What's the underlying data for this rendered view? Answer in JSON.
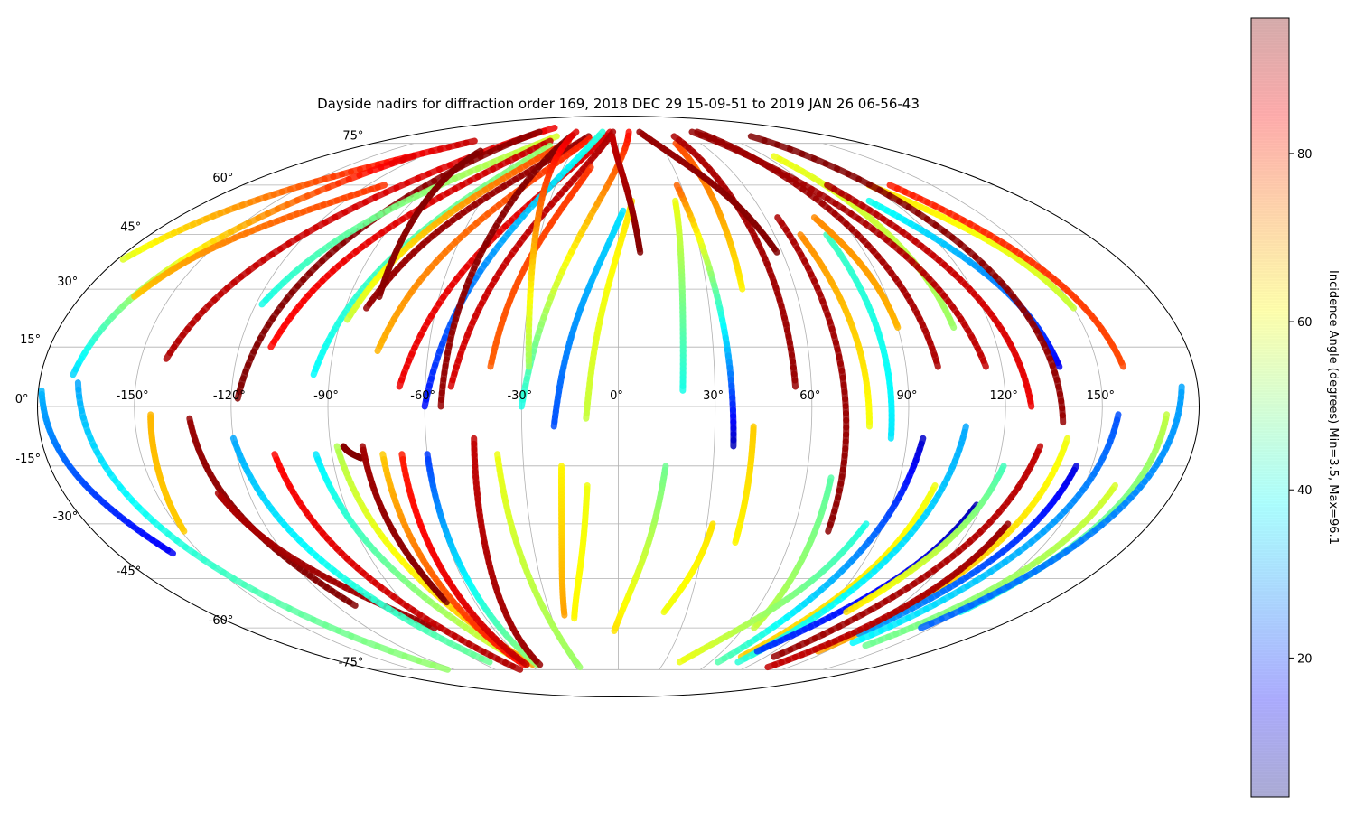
{
  "chart_data": {
    "type": "scatter",
    "projection": "mollweide",
    "title": "Dayside nadirs for diffraction order 169, 2018 DEC 29 15-09-51 to 2019 JAN 26 06-56-43",
    "x_ticks": [
      "-150°",
      "-120°",
      "-90°",
      "-60°",
      "-30°",
      "0°",
      "30°",
      "60°",
      "90°",
      "120°",
      "150°"
    ],
    "y_ticks": [
      "75°",
      "60°",
      "45°",
      "30°",
      "15°",
      "0°",
      "-15°",
      "-30°",
      "-45°",
      "-60°",
      "-75°"
    ],
    "x_tick_values": [
      -150,
      -120,
      -90,
      -60,
      -30,
      0,
      30,
      60,
      90,
      120,
      150
    ],
    "y_tick_values": [
      75,
      60,
      45,
      30,
      15,
      0,
      -15,
      -30,
      -45,
      -60,
      -75
    ],
    "grid": true,
    "colorbar": {
      "label": "Incidence Angle (degrees) Min=3.5, Max=96.1",
      "min": 3.5,
      "max": 96.1,
      "ticks": [
        "20",
        "40",
        "60",
        "80"
      ],
      "tick_values": [
        20,
        40,
        60,
        80
      ],
      "colormap": "jet",
      "alpha": 0.3
    },
    "tracks": [
      {
        "lon0": -168,
        "lat0": 6,
        "lon1": -125,
        "lat1": -75,
        "inc0": 30,
        "inc1": 52
      },
      {
        "lon0": -179,
        "lat0": 4,
        "lon1": -160,
        "lat1": -38,
        "inc0": 32,
        "inc1": 14
      },
      {
        "lon0": -178,
        "lat0": 38,
        "lon1": -110,
        "lat1": 76,
        "inc0": 58,
        "inc1": 90
      },
      {
        "lon0": -170,
        "lat0": 8,
        "lon1": -125,
        "lat1": 70,
        "inc0": 34,
        "inc1": 88
      },
      {
        "lon0": -162,
        "lat0": 28,
        "lon1": -112,
        "lat1": 60,
        "inc0": 66,
        "inc1": 80
      },
      {
        "lon0": -145,
        "lat0": -2,
        "lon1": -149,
        "lat1": -32,
        "inc0": 68,
        "inc1": 66
      },
      {
        "lon0": -142,
        "lat0": 12,
        "lon1": -70,
        "lat1": 82,
        "inc0": 92,
        "inc1": 86
      },
      {
        "lon0": -133,
        "lat0": -3,
        "lon1": -112,
        "lat1": -53,
        "inc0": 94,
        "inc1": 96
      },
      {
        "lon0": -118,
        "lat0": 2,
        "lon1": -75,
        "lat1": 80,
        "inc0": 96,
        "inc1": 95
      },
      {
        "lon0": -130,
        "lat0": -22,
        "lon1": -88,
        "lat1": -60,
        "inc0": 92,
        "inc1": 94
      },
      {
        "lon0": -118,
        "lat0": 26,
        "lon1": -52,
        "lat1": 78,
        "inc0": 40,
        "inc1": 58
      },
      {
        "lon0": -120,
        "lat0": -8,
        "lon1": -84,
        "lat1": -72,
        "inc0": 30,
        "inc1": 48
      },
      {
        "lon0": -110,
        "lat0": 15,
        "lon1": -52,
        "lat1": 76,
        "inc0": 84,
        "inc1": 90
      },
      {
        "lon0": -108,
        "lat0": -12,
        "lon1": -72,
        "lat1": -75,
        "inc0": 84,
        "inc1": 92
      },
      {
        "lon0": -95,
        "lat0": 8,
        "lon1": -48,
        "lat1": 74,
        "inc0": 38,
        "inc1": 52
      },
      {
        "lon0": -95,
        "lat0": -12,
        "lon1": -62,
        "lat1": -73,
        "inc0": 36,
        "inc1": 60
      },
      {
        "lon0": -88,
        "lat0": 22,
        "lon1": -38,
        "lat1": 76,
        "inc0": 56,
        "inc1": 80
      },
      {
        "lon0": -88,
        "lat0": -10,
        "lon1": -58,
        "lat1": -73,
        "inc0": 54,
        "inc1": 70
      },
      {
        "lon0": -83,
        "lat0": 25,
        "lon1": -25,
        "lat1": 78,
        "inc0": 94,
        "inc1": 94
      },
      {
        "lon0": -86,
        "lat0": -10,
        "lon1": -81,
        "lat1": -13,
        "inc0": 95,
        "inc1": 96
      },
      {
        "lon0": -80,
        "lat0": 28,
        "lon1": -90,
        "lat1": 72,
        "inc0": 95,
        "inc1": 96
      },
      {
        "lon0": -80,
        "lat0": -10,
        "lon1": -72,
        "lat1": -52,
        "inc0": 93,
        "inc1": 96
      },
      {
        "lon0": -76,
        "lat0": 14,
        "lon1": -23,
        "lat1": 77,
        "inc0": 68,
        "inc1": 82
      },
      {
        "lon0": -74,
        "lat0": -12,
        "lon1": -64,
        "lat1": -73,
        "inc0": 66,
        "inc1": 84
      },
      {
        "lon0": -68,
        "lat0": 5,
        "lon1": -8,
        "lat1": 80,
        "inc0": 86,
        "inc1": 88
      },
      {
        "lon0": -68,
        "lat0": -12,
        "lon1": -62,
        "lat1": -73,
        "inc0": 82,
        "inc1": 90
      },
      {
        "lon0": -60,
        "lat0": 0,
        "lon1": -15,
        "lat1": 80,
        "inc0": 16,
        "inc1": 42
      },
      {
        "lon0": -60,
        "lat0": -12,
        "lon1": -55,
        "lat1": -73,
        "inc0": 20,
        "inc1": 52
      },
      {
        "lon0": -55,
        "lat0": 0,
        "lon1": -40,
        "lat1": 78,
        "inc0": 94,
        "inc1": 96
      },
      {
        "lon0": -52,
        "lat0": 5,
        "lon1": -5,
        "lat1": 80,
        "inc0": 88,
        "inc1": 92
      },
      {
        "lon0": -45,
        "lat0": -8,
        "lon1": -53,
        "lat1": -73,
        "inc0": 90,
        "inc1": 94
      },
      {
        "lon0": -38,
        "lat0": -12,
        "lon1": -27,
        "lat1": -74,
        "inc0": 60,
        "inc1": 52
      },
      {
        "lon0": -40,
        "lat0": 10,
        "lon1": -15,
        "lat1": 66,
        "inc0": 76,
        "inc1": 80
      },
      {
        "lon0": -30,
        "lat0": 0,
        "lon1": 10,
        "lat1": 80,
        "inc0": 40,
        "inc1": 84
      },
      {
        "lon0": -28,
        "lat0": 10,
        "lon1": -40,
        "lat1": 80,
        "inc0": 52,
        "inc1": 88
      },
      {
        "lon0": -20,
        "lat0": -5,
        "lon1": 2,
        "lat1": 52,
        "inc0": 22,
        "inc1": 36
      },
      {
        "lon0": -18,
        "lat0": -15,
        "lon1": -24,
        "lat1": -56,
        "inc0": 62,
        "inc1": 70
      },
      {
        "lon0": -10,
        "lat0": -3,
        "lon1": 6,
        "lat1": 55,
        "inc0": 56,
        "inc1": 64
      },
      {
        "lon0": -10,
        "lat0": -20,
        "lon1": -20,
        "lat1": -57,
        "inc0": 60,
        "inc1": 62
      },
      {
        "lon0": 8,
        "lat0": 40,
        "lon1": -5,
        "lat1": 78,
        "inc0": 96,
        "inc1": 90
      },
      {
        "lon0": 20,
        "lat0": 4,
        "lon1": 25,
        "lat1": 55,
        "inc0": 40,
        "inc1": 60
      },
      {
        "lon0": 15,
        "lat0": -15,
        "lon1": -2,
        "lat1": -61,
        "inc0": 48,
        "inc1": 64
      },
      {
        "lon0": 36,
        "lat0": -10,
        "lon1": 28,
        "lat1": 60,
        "inc0": 8,
        "inc1": 76
      },
      {
        "lon0": 32,
        "lat0": -30,
        "lon1": 20,
        "lat1": -55,
        "inc0": 64,
        "inc1": 60
      },
      {
        "lon0": 42,
        "lat0": 30,
        "lon1": 42,
        "lat1": 75,
        "inc0": 62,
        "inc1": 78
      },
      {
        "lon0": 42,
        "lat0": -5,
        "lon1": 41,
        "lat1": -35,
        "inc0": 66,
        "inc1": 62
      },
      {
        "lon0": 55,
        "lat0": 5,
        "lon1": 47,
        "lat1": 78,
        "inc0": 94,
        "inc1": 92
      },
      {
        "lon0": 58,
        "lat0": 40,
        "lon1": 20,
        "lat1": 80,
        "inc0": 96,
        "inc1": 94
      },
      {
        "lon0": 72,
        "lat0": -32,
        "lon1": 65,
        "lat1": 50,
        "inc0": 95,
        "inc1": 92
      },
      {
        "lon0": 68,
        "lat0": -18,
        "lon1": 65,
        "lat1": -60,
        "inc0": 46,
        "inc1": 56
      },
      {
        "lon0": 78,
        "lat0": -5,
        "lon1": 70,
        "lat1": 45,
        "inc0": 60,
        "inc1": 72
      },
      {
        "lon0": 85,
        "lat0": -8,
        "lon1": 80,
        "lat1": 45,
        "inc0": 36,
        "inc1": 44
      },
      {
        "lon0": 90,
        "lat0": 20,
        "lon1": 80,
        "lat1": 50,
        "inc0": 68,
        "inc1": 72
      },
      {
        "lon0": 84,
        "lat0": -30,
        "lon1": 40,
        "lat1": -72,
        "inc0": 40,
        "inc1": 60
      },
      {
        "lon0": 95,
        "lat0": -8,
        "lon1": 65,
        "lat1": -72,
        "inc0": 10,
        "inc1": 46
      },
      {
        "lon0": 100,
        "lat0": 10,
        "lon1": 75,
        "lat1": 80,
        "inc0": 92,
        "inc1": 94
      },
      {
        "lon0": 102,
        "lat0": -20,
        "lon1": 75,
        "lat1": -70,
        "inc0": 60,
        "inc1": 66
      },
      {
        "lon0": 108,
        "lat0": 20,
        "lon1": 95,
        "lat1": 70,
        "inc0": 52,
        "inc1": 60
      },
      {
        "lon0": 108,
        "lat0": -5,
        "lon1": 78,
        "lat1": -72,
        "inc0": 30,
        "inc1": 42
      },
      {
        "lon0": 115,
        "lat0": 10,
        "lon1": 70,
        "lat1": 80,
        "inc0": 90,
        "inc1": 94
      },
      {
        "lon0": 118,
        "lat0": -25,
        "lon1": 80,
        "lat1": -68,
        "inc0": 8,
        "inc1": 20
      },
      {
        "lon0": 122,
        "lat0": -15,
        "lon1": 100,
        "lat1": -55,
        "inc0": 44,
        "inc1": 64
      },
      {
        "lon0": 128,
        "lat0": 0,
        "lon1": 100,
        "lat1": 60,
        "inc0": 86,
        "inc1": 92
      },
      {
        "lon0": 132,
        "lat0": -10,
        "lon1": 95,
        "lat1": -70,
        "inc0": 90,
        "inc1": 94
      },
      {
        "lon0": 138,
        "lat0": 10,
        "lon1": 110,
        "lat1": 55,
        "inc0": 14,
        "inc1": 40
      },
      {
        "lon0": 140,
        "lat0": -8,
        "lon1": 115,
        "lat1": -68,
        "inc0": 60,
        "inc1": 70
      },
      {
        "lon0": 145,
        "lat0": -15,
        "lon1": 120,
        "lat1": -62,
        "inc0": 12,
        "inc1": 30
      },
      {
        "lon0": 150,
        "lat0": 25,
        "lon1": 120,
        "lat1": 60,
        "inc0": 56,
        "inc1": 64
      },
      {
        "lon0": 155,
        "lat0": -2,
        "lon1": 125,
        "lat1": -65,
        "inc0": 22,
        "inc1": 38
      },
      {
        "lon0": 158,
        "lat0": 10,
        "lon1": 130,
        "lat1": 60,
        "inc0": 78,
        "inc1": 82
      },
      {
        "lon0": 160,
        "lat0": -20,
        "lon1": 135,
        "lat1": -66,
        "inc0": 58,
        "inc1": 48
      },
      {
        "lon0": 170,
        "lat0": -2,
        "lon1": 150,
        "lat1": -55,
        "inc0": 56,
        "inc1": 40
      },
      {
        "lon0": 175,
        "lat0": 5,
        "lon1": 145,
        "lat1": -60,
        "inc0": 30,
        "inc1": 24
      },
      {
        "lon0": 138,
        "lat0": -4,
        "lon1": 112,
        "lat1": 78,
        "inc0": 94,
        "inc1": 96
      },
      {
        "lon0": 132,
        "lat0": -30,
        "lon1": 105,
        "lat1": -74,
        "inc0": 94,
        "inc1": 90
      }
    ]
  }
}
